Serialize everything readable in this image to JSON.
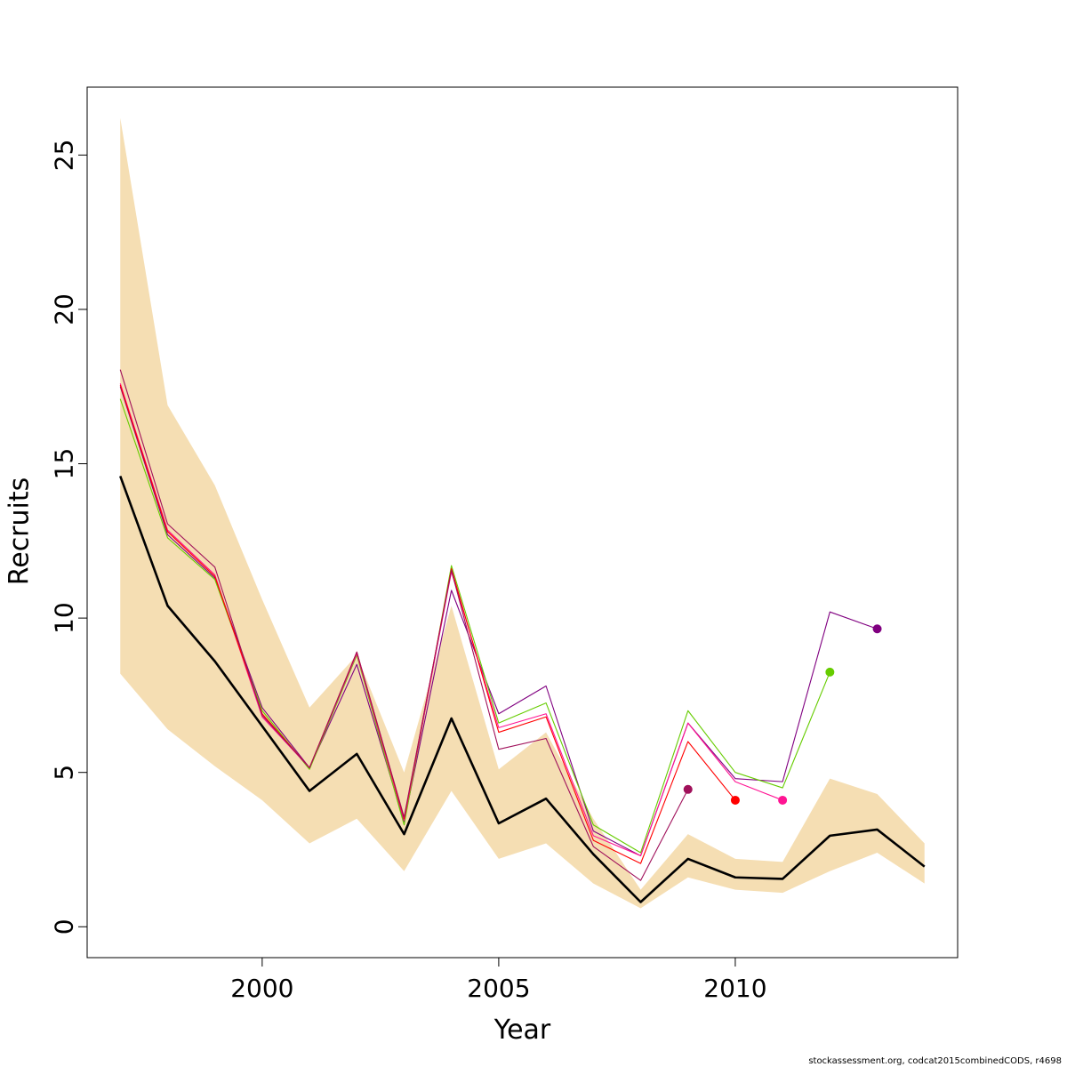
{
  "chart_data": {
    "type": "line",
    "title": "",
    "xlabel": "Year",
    "ylabel": "Recruits",
    "xlim": [
      1996.3,
      2014.7
    ],
    "ylim": [
      -1.0,
      27.2
    ],
    "x_ticks": [
      2000,
      2005,
      2010
    ],
    "y_ticks": [
      0,
      5,
      10,
      15,
      20,
      25
    ],
    "grid": false,
    "legend": "none",
    "footnote": "stockassessment.org, codcat2015combinedCODS, r4698",
    "band": {
      "color": "#F5DEB3",
      "x": [
        1997,
        1998,
        1999,
        2000,
        2001,
        2002,
        2003,
        2004,
        2005,
        2006,
        2007,
        2008,
        2009,
        2010,
        2011,
        2012,
        2013,
        2014
      ],
      "upper": [
        26.2,
        16.9,
        14.3,
        10.6,
        7.1,
        8.8,
        5.0,
        10.4,
        5.1,
        6.3,
        3.5,
        1.2,
        3.0,
        2.2,
        2.1,
        4.8,
        4.3,
        2.7
      ],
      "lower": [
        8.2,
        6.4,
        5.2,
        4.1,
        2.7,
        3.5,
        1.8,
        4.4,
        2.2,
        2.7,
        1.4,
        0.6,
        1.6,
        1.2,
        1.1,
        1.8,
        2.4,
        1.4
      ]
    },
    "series": [
      {
        "color": "#000000",
        "width": 2.6,
        "x": [
          1997,
          1998,
          1999,
          2000,
          2001,
          2002,
          2003,
          2004,
          2005,
          2006,
          2007,
          2008,
          2009,
          2010,
          2011,
          2012,
          2013,
          2014
        ],
        "values": [
          14.6,
          10.4,
          8.6,
          6.5,
          4.4,
          5.6,
          3.0,
          6.75,
          3.35,
          4.15,
          2.35,
          0.8,
          2.2,
          1.6,
          1.55,
          2.95,
          3.15,
          1.95
        ]
      },
      {
        "color": "#800080",
        "width": 1.1,
        "x": [
          1997,
          1998,
          1999,
          2000,
          2001,
          2002,
          2003,
          2004,
          2005,
          2006,
          2007,
          2008,
          2009,
          2010,
          2011,
          2012,
          2013
        ],
        "values": [
          17.5,
          12.7,
          11.3,
          7.1,
          5.15,
          8.5,
          3.4,
          10.9,
          6.9,
          7.8,
          3.1,
          2.3,
          6.6,
          4.8,
          4.7,
          10.2,
          9.65
        ],
        "end_marker": true
      },
      {
        "color": "#66CC00",
        "width": 1.1,
        "x": [
          1997,
          1998,
          1999,
          2000,
          2001,
          2002,
          2003,
          2004,
          2005,
          2006,
          2007,
          2008,
          2009,
          2010,
          2011,
          2012
        ],
        "values": [
          17.1,
          12.6,
          11.25,
          7.0,
          5.1,
          8.8,
          3.3,
          11.7,
          6.6,
          7.25,
          3.3,
          2.4,
          7.0,
          5.0,
          4.5,
          8.25
        ],
        "end_marker": true
      },
      {
        "color": "#FF1493",
        "width": 1.1,
        "x": [
          1997,
          1998,
          1999,
          2000,
          2001,
          2002,
          2003,
          2004,
          2005,
          2006,
          2007,
          2008,
          2009,
          2010,
          2011
        ],
        "values": [
          17.6,
          12.85,
          11.4,
          6.8,
          5.15,
          8.85,
          3.45,
          11.5,
          6.45,
          6.9,
          2.95,
          2.3,
          6.6,
          4.7,
          4.1
        ],
        "end_marker": true
      },
      {
        "color": "#FF0000",
        "width": 1.1,
        "x": [
          1997,
          1998,
          1999,
          2000,
          2001,
          2002,
          2003,
          2004,
          2005,
          2006,
          2007,
          2008,
          2009,
          2010
        ],
        "values": [
          17.55,
          12.8,
          11.35,
          6.9,
          5.15,
          8.9,
          3.5,
          11.6,
          6.3,
          6.8,
          2.8,
          2.05,
          6.0,
          4.1
        ],
        "end_marker": true
      },
      {
        "color": "#A0105A",
        "width": 1.1,
        "x": [
          1997,
          1998,
          1999,
          2000,
          2001,
          2002,
          2003,
          2004,
          2005,
          2006,
          2007,
          2008,
          2009
        ],
        "values": [
          18.05,
          13.05,
          11.65,
          6.85,
          5.15,
          8.9,
          3.55,
          11.55,
          5.75,
          6.1,
          2.6,
          1.5,
          4.45
        ],
        "end_marker": true
      }
    ]
  }
}
